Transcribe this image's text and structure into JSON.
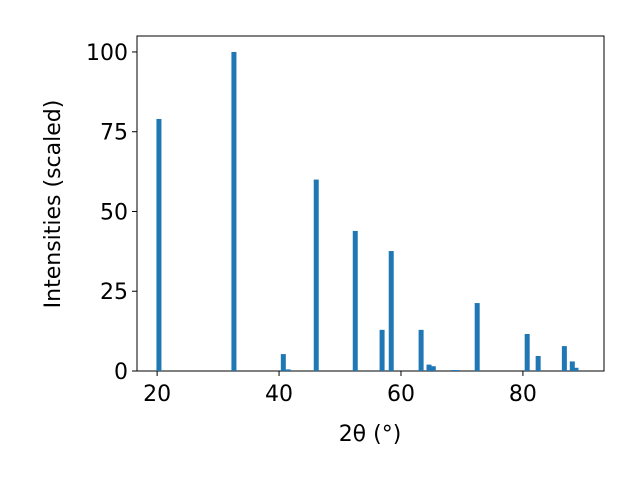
{
  "chart_data": {
    "type": "bar",
    "xlabel": "2θ (°)",
    "ylabel": "Intensities (scaled)",
    "x": [
      20.3,
      32.6,
      40.7,
      41.5,
      46.1,
      52.5,
      56.9,
      58.4,
      63.3,
      64.6,
      65.3,
      68.6,
      69.2,
      72.5,
      80.7,
      82.5,
      86.8,
      88.1,
      88.7
    ],
    "values": [
      79,
      100,
      5.3,
      0.5,
      60,
      43.9,
      12.9,
      37.6,
      12.9,
      2,
      1.5,
      0.3,
      0.3,
      21.3,
      11.6,
      4.7,
      7.8,
      3,
      1
    ],
    "color": "#1f77b4",
    "xlim": [
      16.7,
      93.3
    ],
    "xticks": [
      20,
      40,
      60,
      80
    ],
    "ylim": [
      0,
      105
    ],
    "yticks": [
      0,
      25,
      50,
      75,
      100
    ]
  }
}
